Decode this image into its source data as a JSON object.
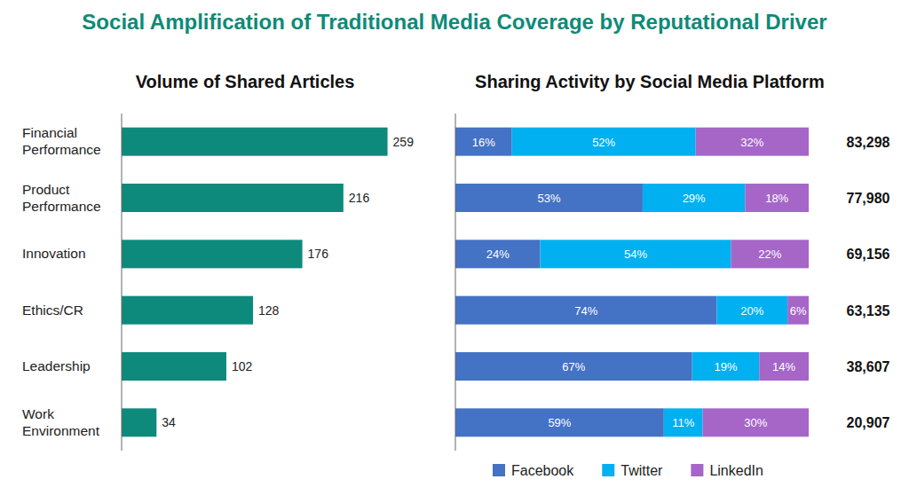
{
  "title": "Social Amplification of Traditional Media Coverage by Reputational Driver",
  "chart_data": [
    {
      "type": "bar",
      "title": "Volume of Shared Articles",
      "categories": [
        "Financial Performance",
        "Product Performance",
        "Innovation",
        "Ethics/CR",
        "Leadership",
        "Work Environment"
      ],
      "values": [
        259,
        216,
        176,
        128,
        102,
        34
      ],
      "color": "#0e8a7c",
      "orientation": "horizontal",
      "data_labels": true,
      "tick_labels": "y",
      "xlim": [
        0,
        300
      ]
    },
    {
      "type": "bar",
      "title": "Sharing Activity by Social Media Platform",
      "orientation": "horizontal",
      "stacked": true,
      "data_labels": true,
      "tick_labels": false,
      "legend": "bottom",
      "xlim": [
        0,
        100
      ],
      "series": [
        {
          "name": "Facebook",
          "color": "#4472c4",
          "values": [
            16,
            53,
            24,
            74,
            67,
            59
          ],
          "value_labels": [
            "16%",
            "53%",
            "24%",
            "74%",
            "67%",
            "59%"
          ]
        },
        {
          "name": "Twitter",
          "color": "#00b0f0",
          "values": [
            52,
            29,
            54,
            20,
            19,
            11
          ],
          "value_labels": [
            "52%",
            "29%",
            "54%",
            "20%",
            "19%",
            "11%"
          ]
        },
        {
          "name": "LinkedIn",
          "color": "#a566c8",
          "values": [
            32,
            18,
            22,
            6,
            14,
            30
          ],
          "value_labels": [
            "32%",
            "18%",
            "22%",
            "6%",
            "14%",
            "30%"
          ]
        }
      ],
      "totals": [
        83298,
        77980,
        69156,
        63135,
        38607,
        20907
      ],
      "total_labels": [
        "83,298",
        "77,980",
        "69,156",
        "63,135",
        "38,607",
        "20,907"
      ]
    }
  ]
}
